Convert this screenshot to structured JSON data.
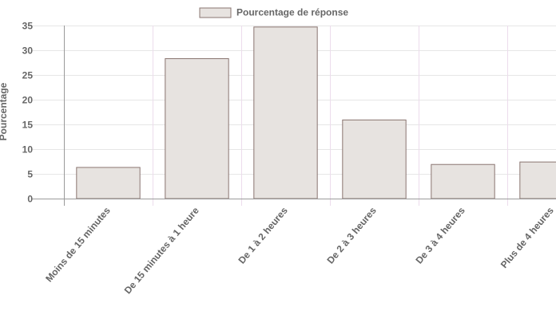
{
  "chart_data": {
    "type": "bar",
    "categories": [
      "Moins de 15 minutes",
      "De 15 minutes à 1 heure",
      "De 1 à 2 heures",
      "De 2 à 3 heures",
      "De 3 à 4 heures",
      "Plus de 4 heures"
    ],
    "series": [
      {
        "name": "Pourcentage de réponse",
        "values": [
          6.3,
          28.3,
          34.7,
          15.9,
          6.9,
          7.4
        ]
      }
    ],
    "ylabel": "Pourcentage",
    "xlabel": "",
    "ylim": [
      0,
      35
    ],
    "yticks": [
      0,
      5,
      10,
      15,
      20,
      25,
      30,
      35
    ],
    "grid": true,
    "legend_position": "top",
    "colors": {
      "bar_fill": "#e7e3e0",
      "bar_stroke": "#8a7570",
      "grid": "#e6e6e6",
      "vgrid": "#ecdcec",
      "axis": "#9a9a9a",
      "text": "#666666"
    }
  }
}
